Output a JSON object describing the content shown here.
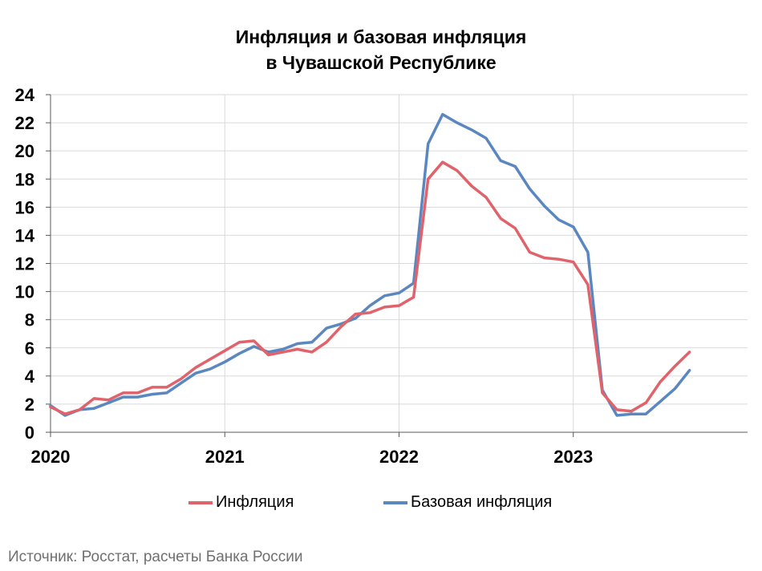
{
  "chart_data": {
    "type": "line",
    "title_line1": "Инфляция и базовая инфляция",
    "title_line2": "в Чувашской Республике",
    "xlabel": "",
    "ylabel": "",
    "x_start": "2020-01",
    "x_ticks": [
      "2020",
      "2021",
      "2022",
      "2023"
    ],
    "ylim": [
      0,
      24
    ],
    "y_ticks": [
      0,
      2,
      4,
      6,
      8,
      10,
      12,
      14,
      16,
      18,
      20,
      22,
      24
    ],
    "grid": true,
    "legend_position": "bottom",
    "series": [
      {
        "name": "Инфляция",
        "color": "#e0636b",
        "values": [
          1.8,
          1.3,
          1.6,
          2.4,
          2.3,
          2.8,
          2.8,
          3.2,
          3.2,
          3.8,
          4.6,
          5.2,
          5.8,
          6.4,
          6.5,
          5.5,
          5.7,
          5.9,
          5.7,
          6.4,
          7.5,
          8.4,
          8.5,
          8.9,
          9.0,
          9.6,
          18.0,
          19.2,
          18.6,
          17.5,
          16.7,
          15.2,
          14.5,
          12.8,
          12.4,
          12.3,
          12.1,
          10.5,
          2.8,
          1.6,
          1.5,
          2.1,
          3.6,
          4.7,
          5.7
        ]
      },
      {
        "name": "Базовая инфляция",
        "color": "#5b87c0",
        "values": [
          1.9,
          1.2,
          1.6,
          1.7,
          2.1,
          2.5,
          2.5,
          2.7,
          2.8,
          3.5,
          4.2,
          4.5,
          5.0,
          5.6,
          6.1,
          5.7,
          5.9,
          6.3,
          6.4,
          7.4,
          7.7,
          8.1,
          9.0,
          9.7,
          9.9,
          10.6,
          20.5,
          22.6,
          22.0,
          21.5,
          20.9,
          19.3,
          18.9,
          17.3,
          16.1,
          15.1,
          14.6,
          12.8,
          3.0,
          1.2,
          1.3,
          1.3,
          2.2,
          3.1,
          4.4
        ]
      }
    ]
  },
  "source": "Источник: Росстат, расчеты Банка России"
}
